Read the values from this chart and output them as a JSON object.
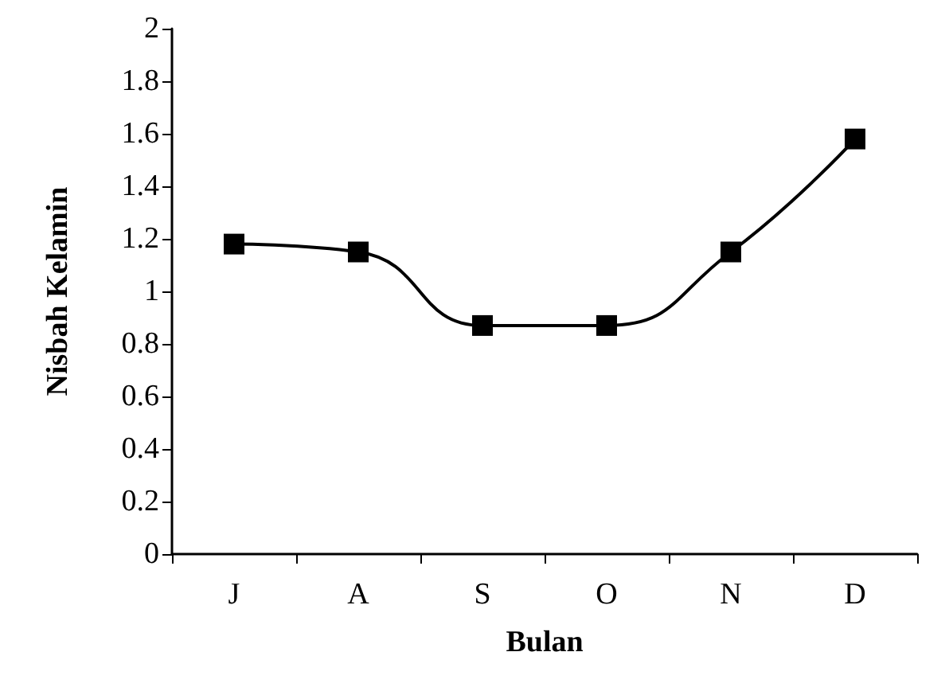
{
  "chart_data": {
    "type": "line",
    "xlabel": "Bulan",
    "ylabel": "Nisbah Kelamin",
    "categories": [
      "J",
      "A",
      "S",
      "O",
      "N",
      "D"
    ],
    "series": [
      {
        "color": "#000000",
        "values": [
          1.18,
          1.15,
          0.87,
          0.87,
          1.15,
          1.58
        ]
      }
    ],
    "ylim": [
      0,
      2
    ],
    "yticks": [
      0,
      0.2,
      0.4,
      0.6,
      0.8,
      1,
      1.2,
      1.4,
      1.6,
      1.8,
      2
    ],
    "grid": false,
    "marker": "square",
    "line_style": "solid"
  }
}
